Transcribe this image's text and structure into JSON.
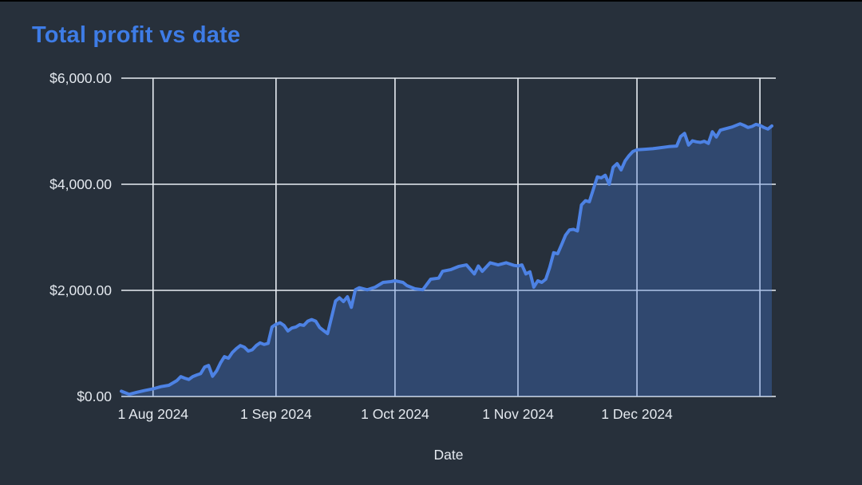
{
  "page": {
    "background": "#27303b",
    "top_edge_color": "#000000"
  },
  "chart_data": {
    "type": "area",
    "title": "Total profit vs date",
    "xlabel": "Date",
    "ylabel": "",
    "title_color": "#3e7ce6",
    "text_color": "#e4e9ef",
    "grid_color": "#e8edf3",
    "line_color": "#4d82e4",
    "fill_color": "rgba(66,120,214,0.34)",
    "ylim": [
      0,
      6000
    ],
    "x_range": [
      "2024-07-24",
      "2025-01-05"
    ],
    "grid": true,
    "legend": "none",
    "y_ticks": [
      {
        "value": 0,
        "label": "$0.00"
      },
      {
        "value": 2000,
        "label": "$2,000.00"
      },
      {
        "value": 4000,
        "label": "$4,000.00"
      },
      {
        "value": 6000,
        "label": "$6,000.00"
      }
    ],
    "x_ticks": [
      {
        "date": "2024-08-01",
        "label": "1 Aug 2024"
      },
      {
        "date": "2024-09-01",
        "label": "1 Sep 2024"
      },
      {
        "date": "2024-10-01",
        "label": "1 Oct 2024"
      },
      {
        "date": "2024-11-01",
        "label": "1 Nov 2024"
      },
      {
        "date": "2024-12-01",
        "label": "1 Dec 2024"
      },
      {
        "date": "2025-01-01",
        "label": ""
      }
    ],
    "series": [
      {
        "name": "Total profit",
        "points": [
          [
            "2024-07-24",
            100
          ],
          [
            "2024-07-26",
            40
          ],
          [
            "2024-07-28",
            80
          ],
          [
            "2024-07-30",
            115
          ],
          [
            "2024-08-01",
            145
          ],
          [
            "2024-08-03",
            185
          ],
          [
            "2024-08-05",
            210
          ],
          [
            "2024-08-07",
            300
          ],
          [
            "2024-08-08",
            375
          ],
          [
            "2024-08-09",
            345
          ],
          [
            "2024-08-10",
            320
          ],
          [
            "2024-08-11",
            375
          ],
          [
            "2024-08-12",
            405
          ],
          [
            "2024-08-13",
            430
          ],
          [
            "2024-08-14",
            555
          ],
          [
            "2024-08-15",
            585
          ],
          [
            "2024-08-16",
            380
          ],
          [
            "2024-08-17",
            480
          ],
          [
            "2024-08-18",
            630
          ],
          [
            "2024-08-19",
            750
          ],
          [
            "2024-08-20",
            720
          ],
          [
            "2024-08-21",
            830
          ],
          [
            "2024-08-22",
            900
          ],
          [
            "2024-08-23",
            960
          ],
          [
            "2024-08-24",
            930
          ],
          [
            "2024-08-25",
            855
          ],
          [
            "2024-08-26",
            880
          ],
          [
            "2024-08-27",
            960
          ],
          [
            "2024-08-28",
            1010
          ],
          [
            "2024-08-29",
            980
          ],
          [
            "2024-08-30",
            1000
          ],
          [
            "2024-08-31",
            1310
          ],
          [
            "2024-09-01",
            1360
          ],
          [
            "2024-09-02",
            1390
          ],
          [
            "2024-09-03",
            1340
          ],
          [
            "2024-09-04",
            1235
          ],
          [
            "2024-09-05",
            1290
          ],
          [
            "2024-09-06",
            1310
          ],
          [
            "2024-09-07",
            1355
          ],
          [
            "2024-09-08",
            1340
          ],
          [
            "2024-09-09",
            1420
          ],
          [
            "2024-09-10",
            1450
          ],
          [
            "2024-09-11",
            1420
          ],
          [
            "2024-09-12",
            1300
          ],
          [
            "2024-09-13",
            1240
          ],
          [
            "2024-09-14",
            1185
          ],
          [
            "2024-09-15",
            1490
          ],
          [
            "2024-09-16",
            1800
          ],
          [
            "2024-09-17",
            1860
          ],
          [
            "2024-09-18",
            1790
          ],
          [
            "2024-09-19",
            1880
          ],
          [
            "2024-09-20",
            1680
          ],
          [
            "2024-09-21",
            2010
          ],
          [
            "2024-09-22",
            2050
          ],
          [
            "2024-09-24",
            2010
          ],
          [
            "2024-09-26",
            2060
          ],
          [
            "2024-09-28",
            2150
          ],
          [
            "2024-09-30",
            2165
          ],
          [
            "2024-10-01",
            2180
          ],
          [
            "2024-10-03",
            2150
          ],
          [
            "2024-10-04",
            2090
          ],
          [
            "2024-10-06",
            2030
          ],
          [
            "2024-10-08",
            2010
          ],
          [
            "2024-10-10",
            2210
          ],
          [
            "2024-10-12",
            2230
          ],
          [
            "2024-10-13",
            2360
          ],
          [
            "2024-10-15",
            2390
          ],
          [
            "2024-10-17",
            2450
          ],
          [
            "2024-10-19",
            2480
          ],
          [
            "2024-10-21",
            2310
          ],
          [
            "2024-10-22",
            2460
          ],
          [
            "2024-10-23",
            2360
          ],
          [
            "2024-10-25",
            2520
          ],
          [
            "2024-10-27",
            2480
          ],
          [
            "2024-10-29",
            2520
          ],
          [
            "2024-10-31",
            2470
          ],
          [
            "2024-11-01",
            2460
          ],
          [
            "2024-11-02",
            2480
          ],
          [
            "2024-11-03",
            2310
          ],
          [
            "2024-11-04",
            2350
          ],
          [
            "2024-11-05",
            2060
          ],
          [
            "2024-11-06",
            2180
          ],
          [
            "2024-11-07",
            2150
          ],
          [
            "2024-11-08",
            2210
          ],
          [
            "2024-11-09",
            2430
          ],
          [
            "2024-11-10",
            2710
          ],
          [
            "2024-11-11",
            2690
          ],
          [
            "2024-11-12",
            2860
          ],
          [
            "2024-11-13",
            3040
          ],
          [
            "2024-11-14",
            3140
          ],
          [
            "2024-11-15",
            3150
          ],
          [
            "2024-11-16",
            3120
          ],
          [
            "2024-11-17",
            3610
          ],
          [
            "2024-11-18",
            3690
          ],
          [
            "2024-11-19",
            3670
          ],
          [
            "2024-11-21",
            4140
          ],
          [
            "2024-11-22",
            4120
          ],
          [
            "2024-11-23",
            4170
          ],
          [
            "2024-11-24",
            4000
          ],
          [
            "2024-11-25",
            4320
          ],
          [
            "2024-11-26",
            4390
          ],
          [
            "2024-11-27",
            4270
          ],
          [
            "2024-11-28",
            4440
          ],
          [
            "2024-11-29",
            4540
          ],
          [
            "2024-11-30",
            4620
          ],
          [
            "2024-12-01",
            4650
          ],
          [
            "2024-12-03",
            4660
          ],
          [
            "2024-12-05",
            4670
          ],
          [
            "2024-12-07",
            4690
          ],
          [
            "2024-12-09",
            4710
          ],
          [
            "2024-12-11",
            4720
          ],
          [
            "2024-12-12",
            4900
          ],
          [
            "2024-12-13",
            4960
          ],
          [
            "2024-12-14",
            4740
          ],
          [
            "2024-12-15",
            4820
          ],
          [
            "2024-12-16",
            4800
          ],
          [
            "2024-12-17",
            4790
          ],
          [
            "2024-12-18",
            4810
          ],
          [
            "2024-12-19",
            4770
          ],
          [
            "2024-12-20",
            4990
          ],
          [
            "2024-12-21",
            4890
          ],
          [
            "2024-12-22",
            5020
          ],
          [
            "2024-12-23",
            5040
          ],
          [
            "2024-12-25",
            5080
          ],
          [
            "2024-12-27",
            5140
          ],
          [
            "2024-12-28",
            5110
          ],
          [
            "2024-12-29",
            5070
          ],
          [
            "2024-12-30",
            5090
          ],
          [
            "2024-12-31",
            5130
          ],
          [
            "2025-01-01",
            5110
          ],
          [
            "2025-01-02",
            5070
          ],
          [
            "2025-01-03",
            5040
          ],
          [
            "2025-01-04",
            5100
          ]
        ]
      }
    ]
  }
}
